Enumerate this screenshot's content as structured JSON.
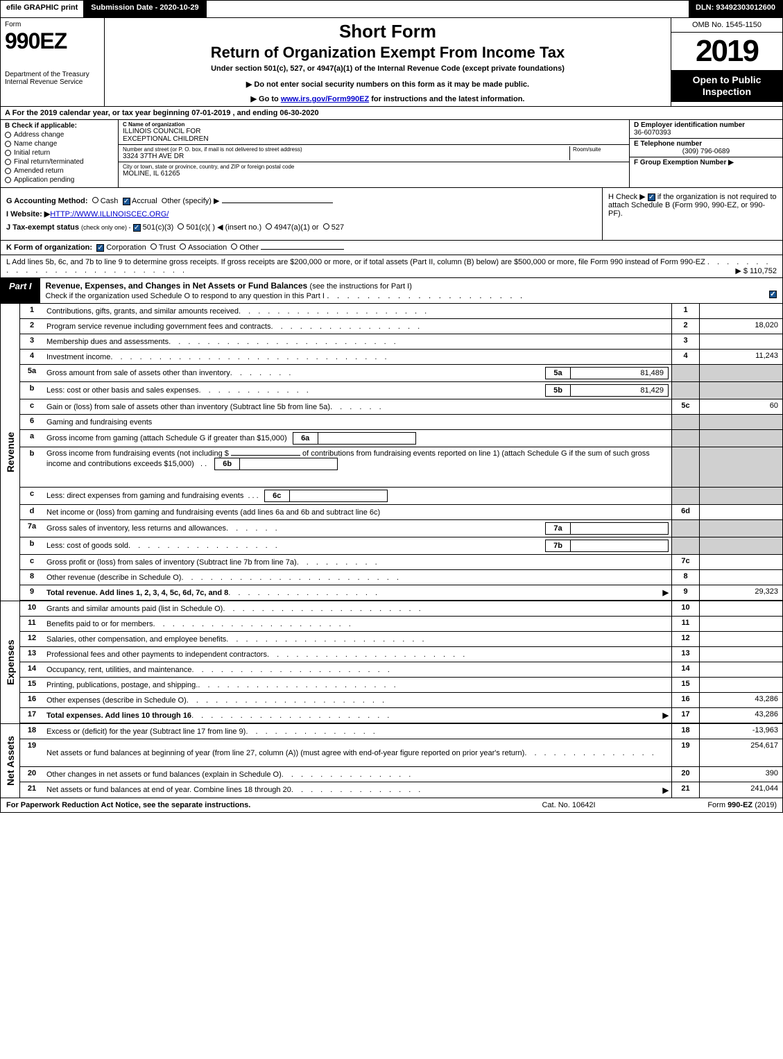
{
  "topbar": {
    "efile": "efile GRAPHIC print",
    "submission": "Submission Date - 2020-10-29",
    "dln": "DLN: 93492303012600"
  },
  "header": {
    "form_word": "Form",
    "form_number": "990EZ",
    "dept": "Department of the Treasury",
    "irs": "Internal Revenue Service",
    "short_form": "Short Form",
    "return_title": "Return of Organization Exempt From Income Tax",
    "under_section": "Under section 501(c), 527, or 4947(a)(1) of the Internal Revenue Code (except private foundations)",
    "notice": "▶ Do not enter social security numbers on this form as it may be made public.",
    "goto_pre": "▶ Go to ",
    "goto_link": "www.irs.gov/Form990EZ",
    "goto_post": " for instructions and the latest information.",
    "omb": "OMB No. 1545-1150",
    "year": "2019",
    "open": "Open to Public Inspection"
  },
  "row_a": "A For the 2019 calendar year, or tax year beginning 07-01-2019 , and ending 06-30-2020",
  "col_b": {
    "title": "B Check if applicable:",
    "items": [
      "Address change",
      "Name change",
      "Initial return",
      "Final return/terminated",
      "Amended return",
      "Application pending"
    ]
  },
  "col_c": {
    "name_label": "C Name of organization",
    "name1": "ILLINOIS COUNCIL FOR",
    "name2": "EXCEPTIONAL CHILDREN",
    "street_label": "Number and street (or P. O. box, if mail is not delivered to street address)",
    "room_label": "Room/suite",
    "street": "3324 37TH AVE DR",
    "city_label": "City or town, state or province, country, and ZIP or foreign postal code",
    "city": "MOLINE, IL  61265"
  },
  "col_d": {
    "ein_label": "D Employer identification number",
    "ein": "36-6070393",
    "tel_label": "E Telephone number",
    "tel": "(309) 796-0689",
    "group_label": "F Group Exemption Number ▶"
  },
  "g": {
    "label": "G Accounting Method:",
    "cash": "Cash",
    "accrual": "Accrual",
    "other": "Other (specify) ▶"
  },
  "h": {
    "text1": "H Check ▶",
    "text2": "if the organization is not required to attach Schedule B (Form 990, 990-EZ, or 990-PF)."
  },
  "i": {
    "label": "I Website: ▶",
    "url": "HTTP://WWW.ILLINOISCEC.ORG/"
  },
  "j": {
    "label": "J Tax-exempt status",
    "small": "(check only one) -",
    "opt1": "501(c)(3)",
    "opt2": "501(c)( )",
    "insert": "◀ (insert no.)",
    "opt3": "4947(a)(1) or",
    "opt4": "527"
  },
  "k": {
    "label": "K Form of organization:",
    "corp": "Corporation",
    "trust": "Trust",
    "assoc": "Association",
    "other": "Other"
  },
  "l": {
    "text": "L Add lines 5b, 6c, and 7b to line 9 to determine gross receipts. If gross receipts are $200,000 or more, or if total assets (Part II, column (B) below) are $500,000 or more, file Form 990 instead of Form 990-EZ",
    "amount": "▶ $ 110,752"
  },
  "part1": {
    "label": "Part I",
    "title": "Revenue, Expenses, and Changes in Net Assets or Fund Balances",
    "sub": "(see the instructions for Part I)",
    "check_text": "Check if the organization used Schedule O to respond to any question in this Part I"
  },
  "side_labels": {
    "revenue": "Revenue",
    "expenses": "Expenses",
    "netassets": "Net Assets"
  },
  "revenue_lines": [
    {
      "num": "1",
      "desc": "Contributions, gifts, grants, and similar amounts received",
      "rnum": "1",
      "amt": ""
    },
    {
      "num": "2",
      "desc": "Program service revenue including government fees and contracts",
      "rnum": "2",
      "amt": "18,020"
    },
    {
      "num": "3",
      "desc": "Membership dues and assessments",
      "rnum": "3",
      "amt": ""
    },
    {
      "num": "4",
      "desc": "Investment income",
      "rnum": "4",
      "amt": "11,243"
    }
  ],
  "line5a": {
    "num": "5a",
    "desc": "Gross amount from sale of assets other than inventory",
    "box": "5a",
    "boxval": "81,489"
  },
  "line5b": {
    "num": "b",
    "desc": "Less: cost or other basis and sales expenses",
    "box": "5b",
    "boxval": "81,429"
  },
  "line5c": {
    "num": "c",
    "desc": "Gain or (loss) from sale of assets other than inventory (Subtract line 5b from line 5a)",
    "rnum": "5c",
    "amt": "60"
  },
  "line6": {
    "num": "6",
    "desc": "Gaming and fundraising events"
  },
  "line6a": {
    "num": "a",
    "desc": "Gross income from gaming (attach Schedule G if greater than $15,000)",
    "box": "6a",
    "boxval": ""
  },
  "line6b": {
    "num": "b",
    "desc1": "Gross income from fundraising events (not including $",
    "desc2": "of contributions from fundraising events reported on line 1) (attach Schedule G if the sum of such gross income and contributions exceeds $15,000)",
    "box": "6b",
    "boxval": ""
  },
  "line6c": {
    "num": "c",
    "desc": "Less: direct expenses from gaming and fundraising events",
    "box": "6c",
    "boxval": ""
  },
  "line6d": {
    "num": "d",
    "desc": "Net income or (loss) from gaming and fundraising events (add lines 6a and 6b and subtract line 6c)",
    "rnum": "6d",
    "amt": ""
  },
  "line7a": {
    "num": "7a",
    "desc": "Gross sales of inventory, less returns and allowances",
    "box": "7a",
    "boxval": ""
  },
  "line7b": {
    "num": "b",
    "desc": "Less: cost of goods sold",
    "box": "7b",
    "boxval": ""
  },
  "line7c": {
    "num": "c",
    "desc": "Gross profit or (loss) from sales of inventory (Subtract line 7b from line 7a)",
    "rnum": "7c",
    "amt": ""
  },
  "line8": {
    "num": "8",
    "desc": "Other revenue (describe in Schedule O)",
    "rnum": "8",
    "amt": ""
  },
  "line9": {
    "num": "9",
    "desc": "Total revenue. Add lines 1, 2, 3, 4, 5c, 6d, 7c, and 8",
    "rnum": "9",
    "amt": "29,323"
  },
  "expense_lines": [
    {
      "num": "10",
      "desc": "Grants and similar amounts paid (list in Schedule O)",
      "rnum": "10",
      "amt": ""
    },
    {
      "num": "11",
      "desc": "Benefits paid to or for members",
      "rnum": "11",
      "amt": ""
    },
    {
      "num": "12",
      "desc": "Salaries, other compensation, and employee benefits",
      "rnum": "12",
      "amt": ""
    },
    {
      "num": "13",
      "desc": "Professional fees and other payments to independent contractors",
      "rnum": "13",
      "amt": ""
    },
    {
      "num": "14",
      "desc": "Occupancy, rent, utilities, and maintenance",
      "rnum": "14",
      "amt": ""
    },
    {
      "num": "15",
      "desc": "Printing, publications, postage, and shipping.",
      "rnum": "15",
      "amt": ""
    },
    {
      "num": "16",
      "desc": "Other expenses (describe in Schedule O)",
      "rnum": "16",
      "amt": "43,286"
    },
    {
      "num": "17",
      "desc": "Total expenses. Add lines 10 through 16",
      "rnum": "17",
      "amt": "43,286",
      "bold": true
    }
  ],
  "netasset_lines": [
    {
      "num": "18",
      "desc": "Excess or (deficit) for the year (Subtract line 17 from line 9)",
      "rnum": "18",
      "amt": "-13,963"
    },
    {
      "num": "19",
      "desc": "Net assets or fund balances at beginning of year (from line 27, column (A)) (must agree with end-of-year figure reported on prior year's return)",
      "rnum": "19",
      "amt": "254,617",
      "tall": true
    },
    {
      "num": "20",
      "desc": "Other changes in net assets or fund balances (explain in Schedule O)",
      "rnum": "20",
      "amt": "390"
    },
    {
      "num": "21",
      "desc": "Net assets or fund balances at end of year. Combine lines 18 through 20",
      "rnum": "21",
      "amt": "241,044"
    }
  ],
  "footer": {
    "left": "For Paperwork Reduction Act Notice, see the separate instructions.",
    "mid": "Cat. No. 10642I",
    "right_pre": "Form ",
    "right_bold": "990-EZ",
    "right_post": " (2019)"
  },
  "colors": {
    "black": "#000000",
    "white": "#ffffff",
    "grey": "#d0d0d0",
    "link": "#0000cc",
    "check_blue": "#1a5490"
  }
}
